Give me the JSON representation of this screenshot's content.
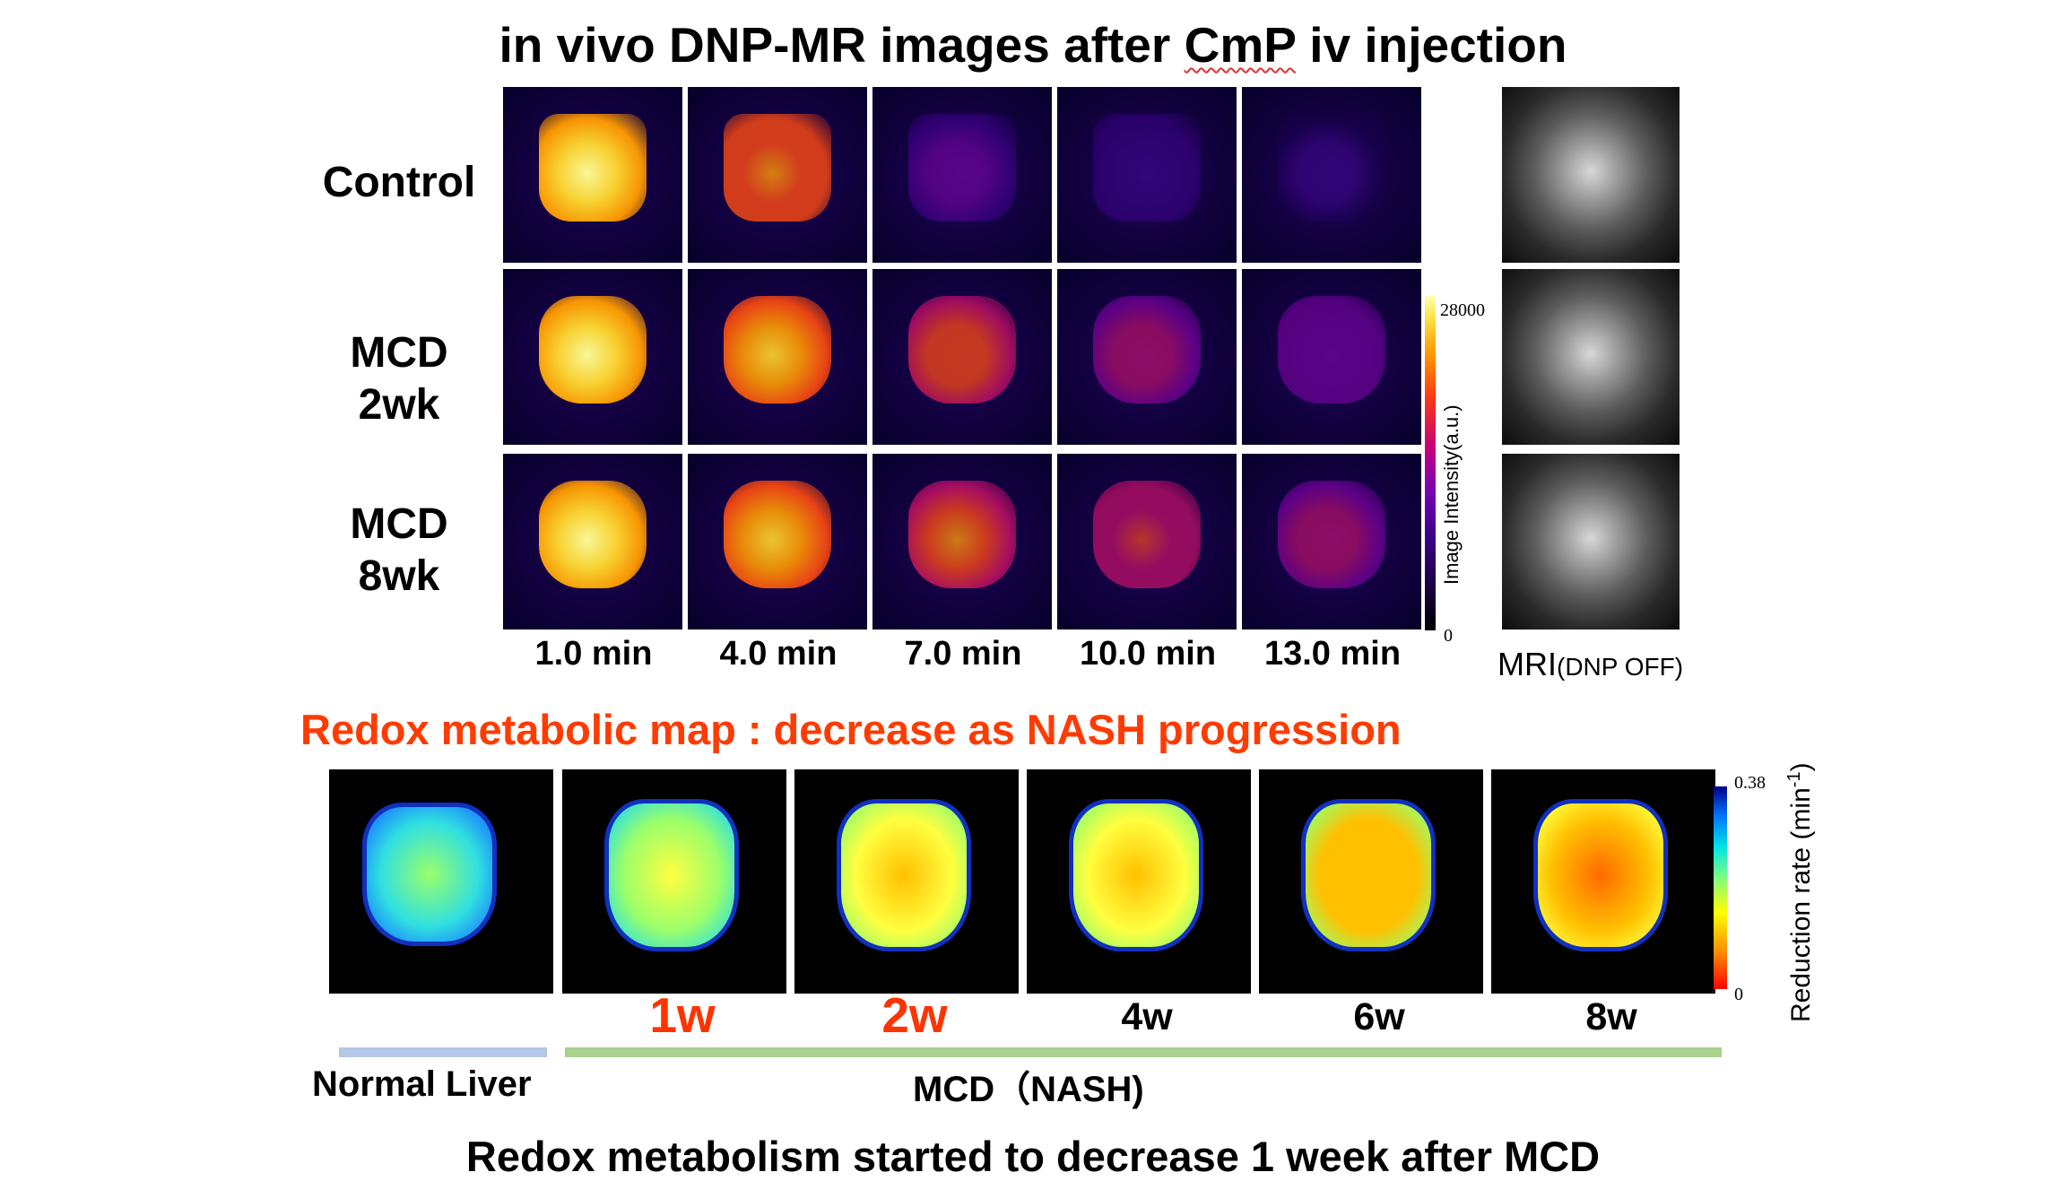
{
  "title": {
    "prefix": "in vivo DNP-MR images after ",
    "agent": "CmP",
    "suffix": " iv injection"
  },
  "rows": [
    {
      "label_line1": "Control",
      "label_line2": ""
    },
    {
      "label_line1": "MCD",
      "label_line2": "2wk"
    },
    {
      "label_line1": "MCD",
      "label_line2": "8wk"
    }
  ],
  "time_points": [
    "1.0 min",
    "4.0 min",
    "7.0 min",
    "10.0 min",
    "13.0 min"
  ],
  "dnp_intensity_fraction": [
    [
      0.95,
      0.7,
      0.25,
      0.1,
      0.08
    ],
    [
      0.95,
      0.85,
      0.6,
      0.4,
      0.3
    ],
    [
      0.95,
      0.85,
      0.65,
      0.5,
      0.4
    ]
  ],
  "intensity_colorbar": {
    "max": "28000",
    "min": "0",
    "label": "Image Intensity(a.u.)"
  },
  "mri_label": {
    "main": "MRI",
    "sub": "(DNP OFF)"
  },
  "redox_title": "Redox metabolic map : decrease as NASH progression",
  "redox_maps": [
    {
      "week": "",
      "mean_rate_fraction": 0.6
    },
    {
      "week": "1w",
      "mean_rate_fraction": 0.45
    },
    {
      "week": "2w",
      "mean_rate_fraction": 0.3
    },
    {
      "week": "4w",
      "mean_rate_fraction": 0.28
    },
    {
      "week": "6w",
      "mean_rate_fraction": 0.26
    },
    {
      "week": "8w",
      "mean_rate_fraction": 0.18
    }
  ],
  "rate_colorbar": {
    "max": "0.38",
    "min": "0",
    "label_main": "Reduction rate (min",
    "label_sup": "-1",
    "label_end": ")"
  },
  "groups": {
    "normal": "Normal Liver",
    "mcd": "MCD（NASH)"
  },
  "colors": {
    "accent_red": "#ff3b00",
    "normal_bar": "#b4c7e7",
    "mcd_bar": "#a9d18e"
  },
  "conclusion": "Redox metabolism started to decrease 1 week after MCD"
}
